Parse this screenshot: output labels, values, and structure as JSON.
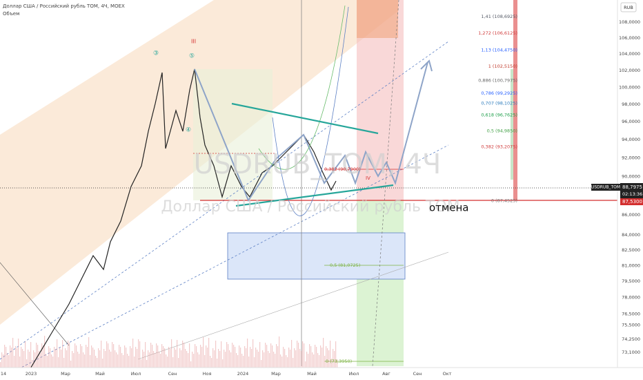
{
  "header": {
    "symbol": "Доллар США / Российский рубль TOM, 4Ч, MOEX",
    "volume": "Объем"
  },
  "watermark": {
    "ticker": "USDRUB_TOM, 4Ч",
    "name": "Доллар США / Российский рубль TOM"
  },
  "currency": "RUB",
  "price_axis": {
    "ticks": [
      {
        "value": 108,
        "label": "108,0000"
      },
      {
        "value": 106,
        "label": "106,0000"
      },
      {
        "value": 104,
        "label": "104,0000"
      },
      {
        "value": 102,
        "label": "102,0000"
      },
      {
        "value": 100,
        "label": "100,0000"
      },
      {
        "value": 98,
        "label": "98,0000"
      },
      {
        "value": 96,
        "label": "96,0000"
      },
      {
        "value": 94,
        "label": "94,0000"
      },
      {
        "value": 92,
        "label": "92,0000"
      },
      {
        "value": 90,
        "label": "90,0000"
      },
      {
        "value": 86,
        "label": "86,0000"
      },
      {
        "value": 84,
        "label": "84,0000"
      },
      {
        "value": 82.5,
        "label": "82,5000"
      },
      {
        "value": 81,
        "label": "81,0000"
      },
      {
        "value": 79.5,
        "label": "79,5000"
      },
      {
        "value": 78,
        "label": "78,0000"
      },
      {
        "value": 76.5,
        "label": "76,5000"
      },
      {
        "value": 75.5,
        "label": "75,5000"
      },
      {
        "value": 74.25,
        "label": "74,2500"
      },
      {
        "value": 73.1,
        "label": "73,1000"
      }
    ]
  },
  "current_price": {
    "symbol": "USDRUB_TOM",
    "price": "88,7975",
    "countdown": "02:13:36"
  },
  "level_label": "87,5300",
  "fib_levels": [
    {
      "value": 108.6925,
      "label": "1,41 (108,6925)",
      "color": "#555a66"
    },
    {
      "value": 106.6125,
      "label": "1,272 (106,6125)",
      "color": "#d03b3b"
    },
    {
      "value": 104.475,
      "label": "1,13 (104,4750)",
      "color": "#2962ff"
    },
    {
      "value": 102.515,
      "label": "1 (102,5150)",
      "color": "#c0392b"
    },
    {
      "value": 100.7975,
      "label": "0,886 (100,7975)",
      "color": "#666666"
    },
    {
      "value": 99.2925,
      "label": "0,786 (99,2925)",
      "color": "#2962ff"
    },
    {
      "value": 98.1025,
      "label": "0,707 (98,1025)",
      "color": "#2e7dbd"
    },
    {
      "value": 96.7625,
      "label": "0,618 (96,7625)",
      "color": "#1e9e4a"
    },
    {
      "value": 94.985,
      "label": "0,5 (94,9850)",
      "color": "#43a047"
    },
    {
      "value": 93.2075,
      "label": "0,382 (93,2075)",
      "color": "#d03b3b"
    },
    {
      "value": 87.4525,
      "label": "0 (87,4525)",
      "color": "#777777"
    }
  ],
  "other_levels": [
    "0,382 (90,7900)",
    "0,5 (81,0725)",
    "0 (73,3950)"
  ],
  "annotations": {
    "cancel": "отмена",
    "waves": [
      "③",
      "⑤",
      "III",
      "④",
      "IV"
    ]
  },
  "time_axis": [
    "14",
    "2023",
    "Мар",
    "Май",
    "Июл",
    "Сен",
    "Ноя",
    "2024",
    "Мар",
    "Май",
    "Июл",
    "Авг",
    "Сен",
    "Окт"
  ]
}
